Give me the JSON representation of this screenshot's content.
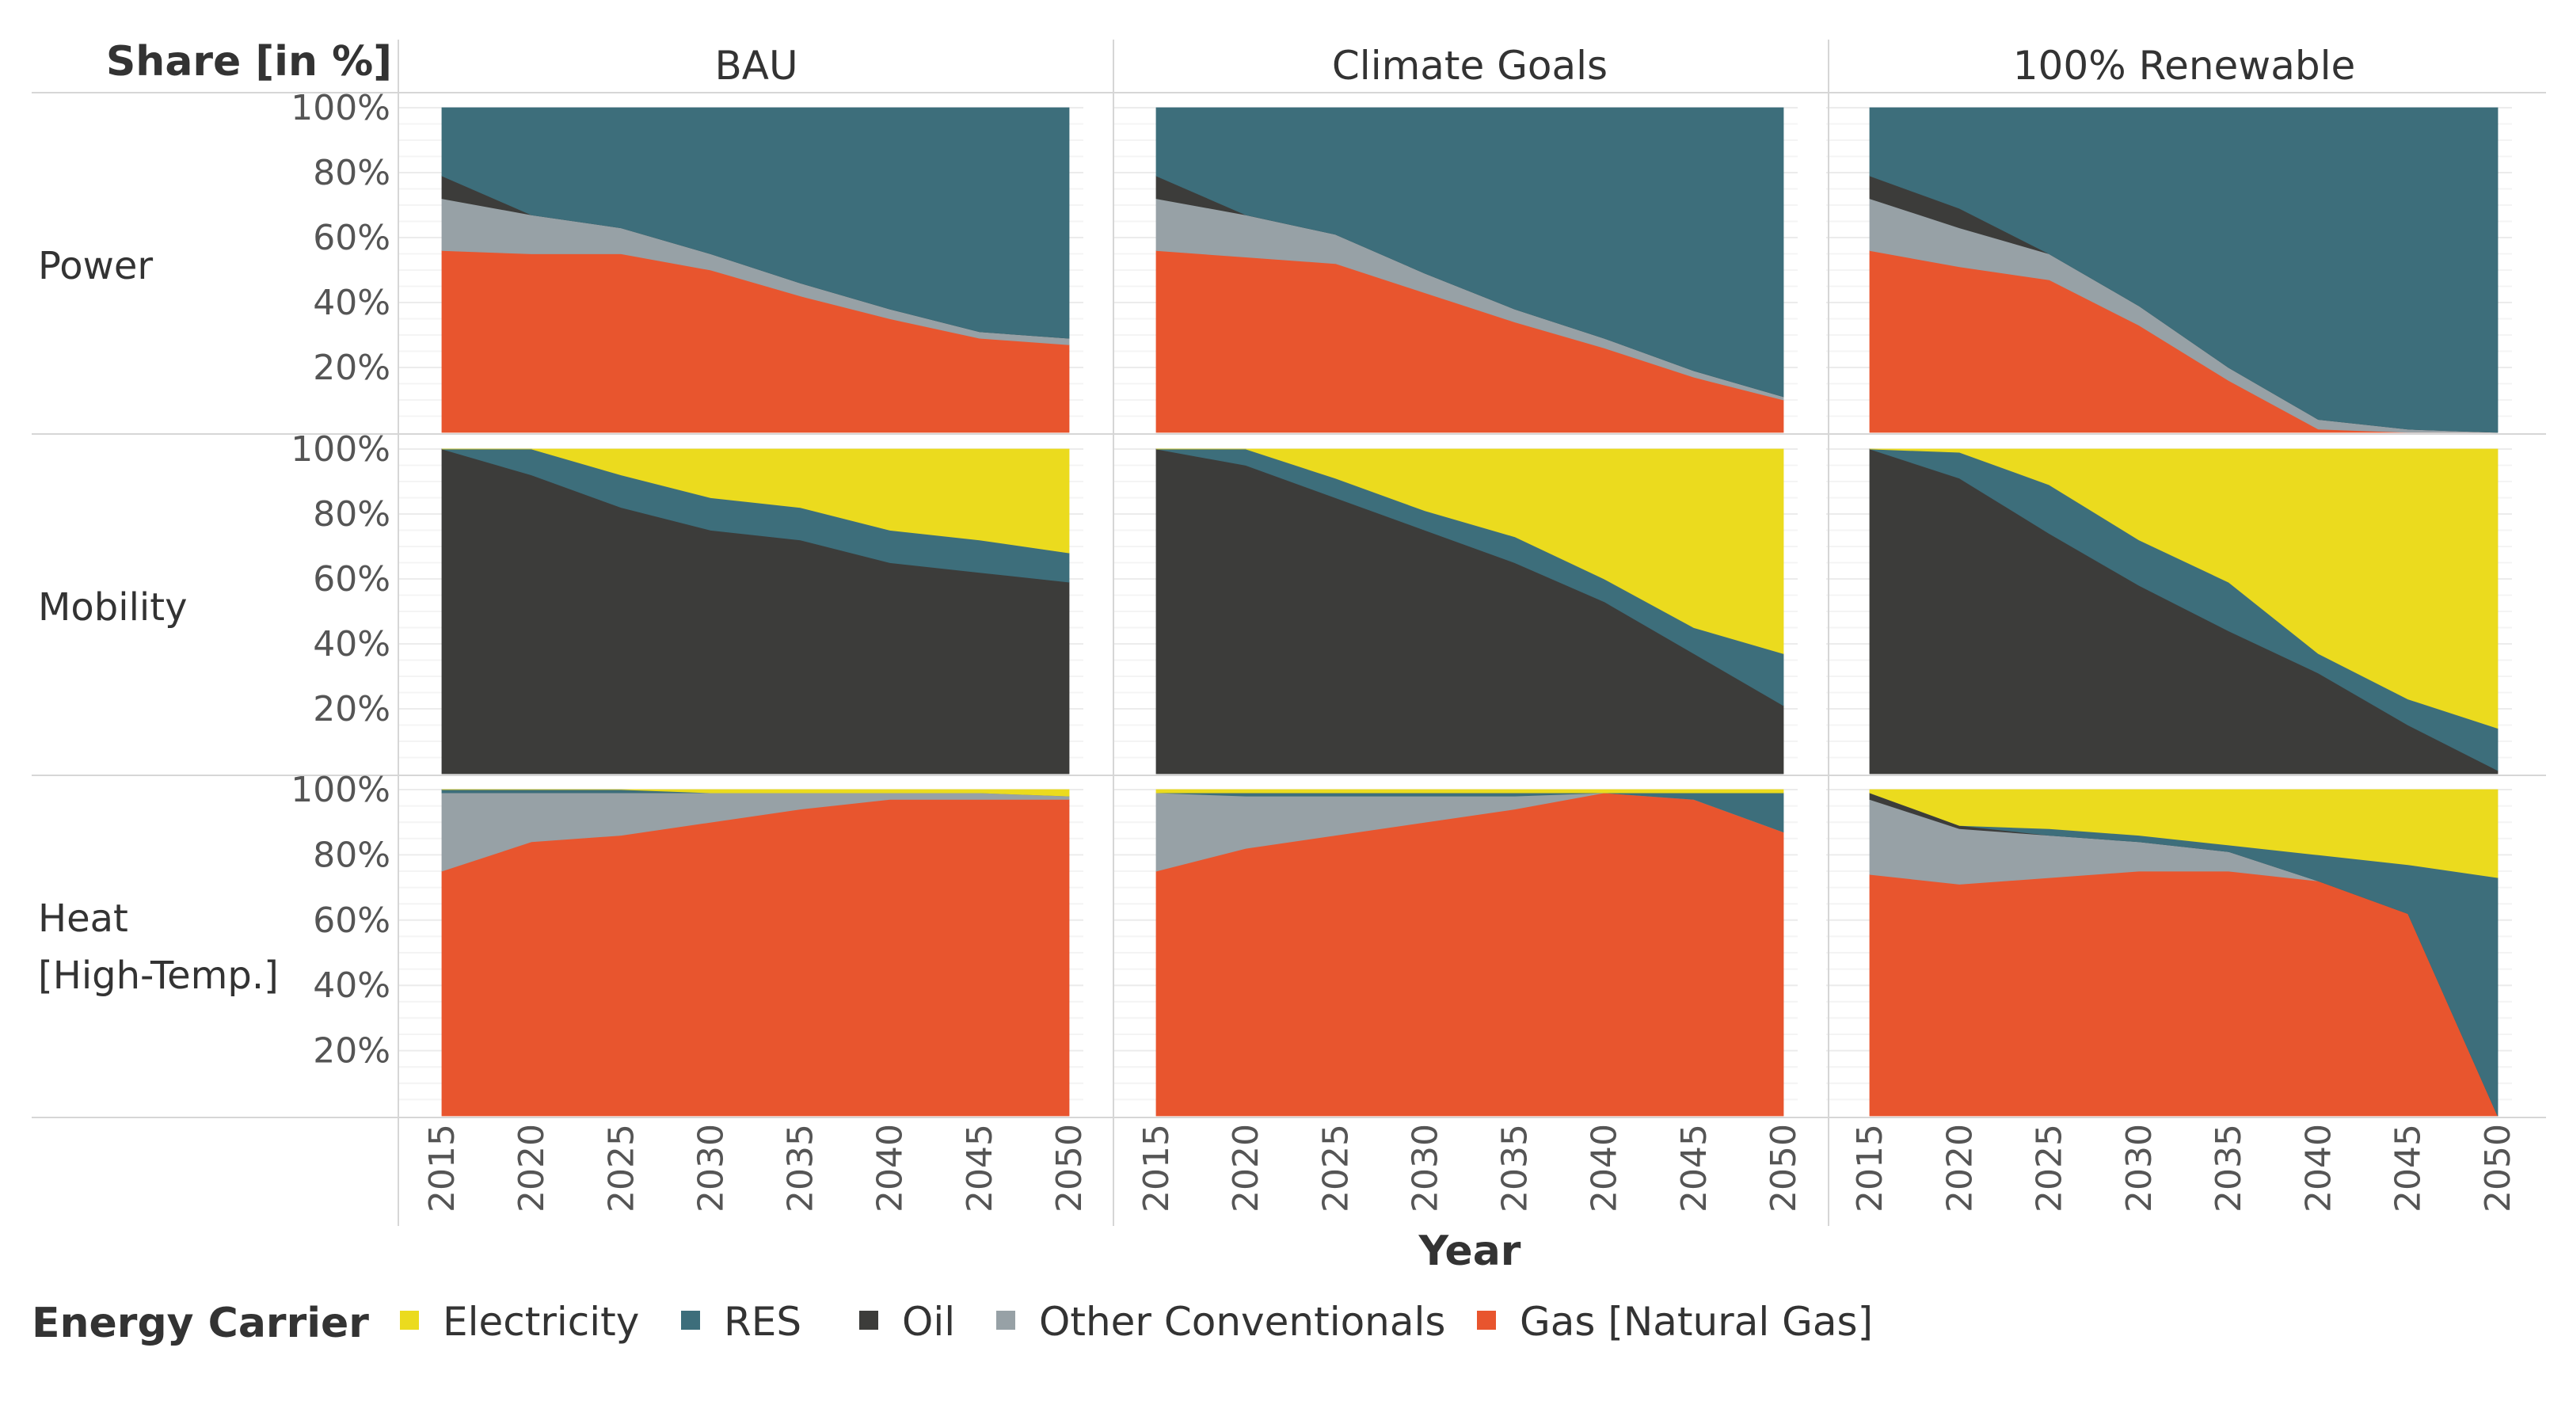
{
  "chart_data": {
    "type": "area",
    "stacked": true,
    "y_axis_title": "Share [in %]",
    "x_axis_title": "Year",
    "y_ticks": [
      "100%",
      "80%",
      "60%",
      "40%",
      "20%"
    ],
    "ylim": [
      0,
      100
    ],
    "x": [
      2015,
      2020,
      2025,
      2030,
      2035,
      2040,
      2045,
      2050
    ],
    "x_ticks": [
      "2015",
      "2020",
      "2025",
      "2030",
      "2035",
      "2040",
      "2045",
      "2050"
    ],
    "columns": [
      "BAU",
      "Climate Goals",
      "100% Renewable"
    ],
    "rows": [
      "Power",
      "Mobility",
      "Heat [High-Temp.]"
    ],
    "series_order_bottom_to_top": [
      "gas",
      "other",
      "oil",
      "res",
      "elec"
    ],
    "panels": [
      {
        "row": 0,
        "col": 0,
        "series": {
          "gas": [
            56,
            55,
            55,
            50,
            42,
            35,
            29,
            27
          ],
          "other": [
            16,
            12,
            8,
            5,
            4,
            3,
            2,
            2
          ],
          "oil": [
            7,
            0,
            0,
            0,
            0,
            0,
            0,
            0
          ],
          "res": [
            21,
            33,
            37,
            45,
            54,
            62,
            69,
            71
          ],
          "elec": [
            0,
            0,
            0,
            0,
            0,
            0,
            0,
            0
          ]
        }
      },
      {
        "row": 0,
        "col": 1,
        "series": {
          "gas": [
            56,
            54,
            52,
            43,
            34,
            26,
            17,
            10
          ],
          "other": [
            16,
            13,
            9,
            6,
            4,
            3,
            2,
            1
          ],
          "oil": [
            7,
            0,
            0,
            0,
            0,
            0,
            0,
            0
          ],
          "res": [
            21,
            33,
            39,
            51,
            62,
            71,
            81,
            89
          ],
          "elec": [
            0,
            0,
            0,
            0,
            0,
            0,
            0,
            0
          ]
        }
      },
      {
        "row": 0,
        "col": 2,
        "series": {
          "gas": [
            56,
            51,
            47,
            33,
            16,
            1,
            0,
            0
          ],
          "other": [
            16,
            12,
            8,
            6,
            4,
            3,
            1,
            0
          ],
          "oil": [
            7,
            6,
            0,
            0,
            0,
            0,
            0,
            0
          ],
          "res": [
            21,
            31,
            45,
            61,
            80,
            96,
            99,
            100
          ],
          "elec": [
            0,
            0,
            0,
            0,
            0,
            0,
            0,
            0
          ]
        }
      },
      {
        "row": 1,
        "col": 0,
        "series": {
          "gas": [
            0,
            0,
            0,
            0,
            0,
            0,
            0,
            0
          ],
          "other": [
            0,
            0,
            0,
            0,
            0,
            0,
            0,
            0
          ],
          "oil": [
            100,
            92,
            82,
            75,
            72,
            65,
            62,
            59
          ],
          "res": [
            0,
            8,
            10,
            10,
            10,
            10,
            10,
            9
          ],
          "elec": [
            0,
            0,
            8,
            15,
            18,
            25,
            28,
            32
          ]
        }
      },
      {
        "row": 1,
        "col": 1,
        "series": {
          "gas": [
            0,
            0,
            0,
            0,
            0,
            0,
            0,
            0
          ],
          "other": [
            0,
            0,
            0,
            0,
            0,
            0,
            0,
            0
          ],
          "oil": [
            100,
            95,
            85,
            75,
            65,
            53,
            37,
            21
          ],
          "res": [
            0,
            5,
            6,
            6,
            8,
            7,
            8,
            16
          ],
          "elec": [
            0,
            0,
            9,
            19,
            27,
            40,
            55,
            63
          ]
        }
      },
      {
        "row": 1,
        "col": 2,
        "series": {
          "gas": [
            0,
            0,
            0,
            0,
            0,
            0,
            0,
            0
          ],
          "other": [
            0,
            0,
            0,
            0,
            0,
            0,
            0,
            0
          ],
          "oil": [
            100,
            91,
            74,
            58,
            44,
            31,
            15,
            1
          ],
          "res": [
            0,
            8,
            15,
            14,
            15,
            6,
            8,
            13
          ],
          "elec": [
            0,
            1,
            11,
            28,
            41,
            63,
            77,
            86
          ]
        }
      },
      {
        "row": 2,
        "col": 0,
        "series": {
          "gas": [
            75,
            84,
            86,
            90,
            94,
            97,
            97,
            97
          ],
          "other": [
            24,
            15,
            13,
            9,
            5,
            2,
            2,
            1
          ],
          "oil": [
            0,
            0,
            0,
            0,
            0,
            0,
            0,
            0
          ],
          "res": [
            1,
            1,
            1,
            0,
            0,
            0,
            0,
            0
          ],
          "elec": [
            0,
            0,
            0,
            1,
            1,
            1,
            1,
            2
          ]
        }
      },
      {
        "row": 2,
        "col": 1,
        "series": {
          "gas": [
            75,
            82,
            86,
            90,
            94,
            99,
            97,
            87
          ],
          "other": [
            24,
            16,
            12,
            8,
            4,
            0,
            0,
            0
          ],
          "oil": [
            0,
            0,
            0,
            0,
            0,
            0,
            0,
            0
          ],
          "res": [
            0,
            1,
            1,
            1,
            1,
            0,
            2,
            12
          ],
          "elec": [
            1,
            1,
            1,
            1,
            1,
            1,
            1,
            1
          ]
        }
      },
      {
        "row": 2,
        "col": 2,
        "series": {
          "gas": [
            74,
            71,
            73,
            75,
            75,
            72,
            62,
            0
          ],
          "other": [
            23,
            17,
            13,
            9,
            6,
            0,
            0,
            0
          ],
          "oil": [
            2,
            1,
            0,
            0,
            0,
            0,
            0,
            0
          ],
          "res": [
            0,
            0,
            2,
            2,
            2,
            8,
            15,
            73
          ],
          "elec": [
            1,
            11,
            12,
            14,
            17,
            20,
            23,
            27
          ]
        }
      }
    ],
    "legend": {
      "title": "Energy Carrier",
      "position": "bottom",
      "items": [
        {
          "key": "elec",
          "label": "Electricity",
          "color": "#ebdb1e"
        },
        {
          "key": "res",
          "label": "RES",
          "color": "#3d6e7b"
        },
        {
          "key": "oil",
          "label": "Oil",
          "color": "#3c3c3a"
        },
        {
          "key": "other",
          "label": "Other Conventionals",
          "color": "#97a1a6"
        },
        {
          "key": "gas",
          "label": "Gas [Natural Gas]",
          "color": "#e8552e"
        }
      ]
    },
    "grid": true
  }
}
